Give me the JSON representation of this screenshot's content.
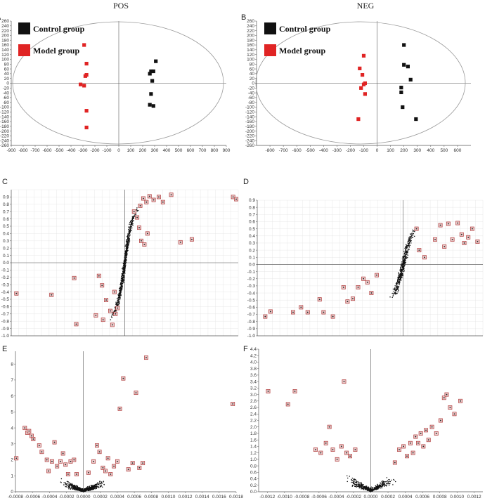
{
  "figure": {
    "title_left": "POS",
    "title_right": "NEG"
  },
  "colors": {
    "control": "#111111",
    "model": "#e02424",
    "ellipse": "#999999",
    "axis": "#555555",
    "grid": "#e2e2e2",
    "marker_outline": "#b03a3a",
    "marker_fill": "#e8c8c8"
  },
  "chart_data": [
    {
      "panel": "A",
      "type": "scatter",
      "title": "POS",
      "xlim": [
        -900,
        900
      ],
      "ylim": [
        -260,
        260
      ],
      "x_ticks": [
        -900,
        -800,
        -700,
        -600,
        -500,
        -400,
        -300,
        -200,
        -100,
        0,
        100,
        200,
        300,
        400,
        500,
        600,
        700,
        800,
        900
      ],
      "y_ticks": [
        260,
        240,
        220,
        200,
        180,
        160,
        140,
        120,
        100,
        80,
        60,
        40,
        20,
        0,
        -20,
        -40,
        -60,
        -80,
        -100,
        -120,
        -140,
        -160,
        -180,
        -200,
        -220,
        -240,
        -260
      ],
      "legend": [
        "Control group",
        "Model group"
      ],
      "series": [
        {
          "name": "Control group",
          "points": [
            [
              310,
              92
            ],
            [
              270,
              50
            ],
            [
              290,
              50
            ],
            [
              260,
              40
            ],
            [
              280,
              10
            ],
            [
              270,
              -45
            ],
            [
              260,
              -90
            ],
            [
              290,
              -95
            ]
          ]
        },
        {
          "name": "Model group",
          "points": [
            [
              -290,
              160
            ],
            [
              -270,
              82
            ],
            [
              -270,
              35
            ],
            [
              -280,
              30
            ],
            [
              -320,
              -5
            ],
            [
              -290,
              -10
            ],
            [
              -270,
              -115
            ],
            [
              -270,
              -185
            ]
          ]
        }
      ]
    },
    {
      "panel": "B",
      "type": "scatter",
      "title": "NEG",
      "xlim": [
        -900,
        700
      ],
      "ylim": [
        -260,
        260
      ],
      "x_ticks": [
        -800,
        -700,
        -600,
        -500,
        -400,
        -300,
        -200,
        -100,
        0,
        100,
        200,
        300,
        400,
        500,
        600
      ],
      "y_ticks": [
        260,
        240,
        220,
        200,
        180,
        160,
        140,
        120,
        100,
        80,
        60,
        40,
        20,
        0,
        -20,
        -40,
        -60,
        -80,
        -100,
        -120,
        -140,
        -160,
        -180,
        -200,
        -220,
        -240,
        -260
      ],
      "legend": [
        "Control group",
        "Model group"
      ],
      "series": [
        {
          "name": "Control group",
          "points": [
            [
              200,
              160
            ],
            [
              200,
              77
            ],
            [
              230,
              70
            ],
            [
              250,
              15
            ],
            [
              180,
              -18
            ],
            [
              180,
              -38
            ],
            [
              190,
              -100
            ],
            [
              290,
              -150
            ]
          ]
        },
        {
          "name": "Model group",
          "points": [
            [
              -100,
              115
            ],
            [
              -130,
              62
            ],
            [
              -110,
              35
            ],
            [
              -90,
              0
            ],
            [
              -100,
              -5
            ],
            [
              -120,
              -20
            ],
            [
              -90,
              -45
            ],
            [
              -140,
              -150
            ]
          ]
        }
      ]
    },
    {
      "panel": "C",
      "type": "scatter",
      "xlim": [
        -0.0011,
        0.0011
      ],
      "ylim": [
        -1.0,
        1.0
      ],
      "y_ticks": [
        0.9,
        0.8,
        0.7,
        0.6,
        0.5,
        0.4,
        0.3,
        0.2,
        0.1,
        0.0,
        -0.1,
        -0.2,
        -0.3,
        -0.4,
        -0.5,
        -0.6,
        -0.7,
        -0.8,
        -0.9,
        -1.0
      ],
      "highlighted": [
        [
          -0.00105,
          -0.42
        ],
        [
          -0.00071,
          -0.44
        ],
        [
          -0.00049,
          -0.21
        ],
        [
          -0.00047,
          -0.84
        ],
        [
          -0.00025,
          -0.18
        ],
        [
          -0.00022,
          -0.31
        ],
        [
          -0.00018,
          -0.51
        ],
        [
          -0.00028,
          -0.72
        ],
        [
          -0.00021,
          -0.78
        ],
        [
          -0.00014,
          -0.66
        ],
        [
          -0.00012,
          -0.85
        ],
        [
          -9e-05,
          -0.7
        ],
        [
          -7e-05,
          -0.62
        ],
        [
          -0.0001,
          -0.4
        ],
        [
          9e-05,
          0.7
        ],
        [
          0.00012,
          0.62
        ],
        [
          0.00015,
          0.78
        ],
        [
          0.00018,
          0.88
        ],
        [
          0.00021,
          0.83
        ],
        [
          0.00024,
          0.91
        ],
        [
          0.00028,
          0.86
        ],
        [
          0.00033,
          0.9
        ],
        [
          0.00037,
          0.83
        ],
        [
          0.00045,
          0.93
        ],
        [
          0.00054,
          0.28
        ],
        [
          0.00065,
          0.32
        ],
        [
          0.00014,
          0.48
        ],
        [
          0.00016,
          0.3
        ],
        [
          0.00019,
          0.25
        ],
        [
          0.00022,
          0.4
        ],
        [
          0.00105,
          0.9
        ],
        [
          0.00108,
          0.87
        ]
      ]
    },
    {
      "panel": "D",
      "type": "scatter",
      "xlim": [
        -0.0011,
        0.0006
      ],
      "ylim": [
        -1.0,
        0.9
      ],
      "y_ticks": [
        0.9,
        0.8,
        0.7,
        0.6,
        0.5,
        0.4,
        0.3,
        0.2,
        0.1,
        0.0,
        -0.1,
        -0.2,
        -0.3,
        -0.4,
        -0.5,
        -0.6,
        -0.7,
        -0.8,
        -0.9,
        -1.0
      ],
      "highlighted": [
        [
          -0.00104,
          -0.73
        ],
        [
          -0.001,
          -0.66
        ],
        [
          -0.00083,
          -0.67
        ],
        [
          -0.00077,
          -0.6
        ],
        [
          -0.00072,
          -0.67
        ],
        [
          -0.00063,
          -0.49
        ],
        [
          -0.0006,
          -0.67
        ],
        [
          -0.00053,
          -0.73
        ],
        [
          -0.00045,
          -0.32
        ],
        [
          -0.00042,
          -0.52
        ],
        [
          -0.00038,
          -0.48
        ],
        [
          -0.00034,
          -0.32
        ],
        [
          -0.0003,
          -0.2
        ],
        [
          -0.00027,
          -0.25
        ],
        [
          -0.00024,
          -0.4
        ],
        [
          -0.0002,
          -0.15
        ],
        [
          0.0001,
          0.5
        ],
        [
          0.00012,
          0.2
        ],
        [
          0.00016,
          0.1
        ],
        [
          0.00024,
          0.35
        ],
        [
          0.00028,
          0.55
        ],
        [
          0.00031,
          0.25
        ],
        [
          0.00034,
          0.57
        ],
        [
          0.00037,
          0.35
        ],
        [
          0.00041,
          0.58
        ],
        [
          0.00044,
          0.42
        ],
        [
          0.00046,
          0.3
        ],
        [
          0.00049,
          0.38
        ],
        [
          0.00052,
          0.5
        ],
        [
          0.00056,
          0.32
        ]
      ]
    },
    {
      "panel": "E",
      "type": "scatter",
      "xlim": [
        -0.0008,
        0.0018
      ],
      "ylim": [
        0,
        8.8
      ],
      "x_ticks": [
        -0.0008,
        -0.0006,
        -0.0004,
        -0.0002,
        0.0,
        0.0002,
        0.0004,
        0.0006,
        0.0008,
        0.001,
        0.0012,
        0.0014,
        0.0016,
        0.0018
      ],
      "y_ticks": [
        0,
        1,
        2,
        3,
        4,
        5,
        6,
        7,
        8
      ],
      "highlighted": [
        [
          -0.00079,
          2.1
        ],
        [
          -0.00069,
          4.0
        ],
        [
          -0.00066,
          3.7
        ],
        [
          -0.00064,
          3.8
        ],
        [
          -0.00061,
          3.5
        ],
        [
          -0.00059,
          3.3
        ],
        [
          -0.00052,
          2.9
        ],
        [
          -0.00049,
          2.5
        ],
        [
          -0.00043,
          2.0
        ],
        [
          -0.00041,
          1.3
        ],
        [
          -0.00037,
          1.9
        ],
        [
          -0.00034,
          3.1
        ],
        [
          -0.00031,
          1.6
        ],
        [
          -0.00027,
          1.9
        ],
        [
          -0.00024,
          2.4
        ],
        [
          -0.00021,
          1.7
        ],
        [
          -0.00018,
          1.1
        ],
        [
          -0.00015,
          1.9
        ],
        [
          -0.00011,
          2.0
        ],
        [
          -8e-05,
          1.1
        ],
        [
          6e-05,
          1.2
        ],
        [
          0.00012,
          1.9
        ],
        [
          0.00016,
          2.9
        ],
        [
          0.00019,
          2.5
        ],
        [
          0.00023,
          1.5
        ],
        [
          0.00026,
          1.3
        ],
        [
          0.00029,
          2.1
        ],
        [
          0.00032,
          1.1
        ],
        [
          0.00036,
          1.6
        ],
        [
          0.0004,
          1.9
        ],
        [
          0.00043,
          5.2
        ],
        [
          0.00047,
          7.1
        ],
        [
          0.00053,
          1.4
        ],
        [
          0.00058,
          1.8
        ],
        [
          0.00062,
          6.2
        ],
        [
          0.00066,
          1.5
        ],
        [
          0.0007,
          1.8
        ],
        [
          0.00074,
          8.4
        ],
        [
          0.00176,
          5.5
        ]
      ]
    },
    {
      "panel": "F",
      "type": "scatter",
      "xlim": [
        -0.0013,
        0.0013
      ],
      "ylim": [
        0,
        4.4
      ],
      "x_ticks": [
        -0.0012,
        -0.001,
        -0.0008,
        -0.0006,
        -0.0004,
        -0.0002,
        0.0,
        0.0002,
        0.0004,
        0.0006,
        0.0008,
        0.001,
        0.0012
      ],
      "y_ticks": [
        0,
        0.2,
        0.4,
        0.6,
        0.8,
        1.0,
        1.2,
        1.4,
        1.6,
        1.8,
        2.0,
        2.2,
        2.4,
        2.6,
        2.8,
        3.0,
        3.2,
        3.4,
        3.6,
        3.8,
        4.0,
        4.2,
        4.4
      ],
      "highlighted": [
        [
          -0.00119,
          3.1
        ],
        [
          -0.00096,
          2.7
        ],
        [
          -0.00088,
          3.1
        ],
        [
          -0.00064,
          1.3
        ],
        [
          -0.00058,
          1.2
        ],
        [
          -0.00052,
          1.5
        ],
        [
          -0.00048,
          2.0
        ],
        [
          -0.00044,
          1.3
        ],
        [
          -0.00039,
          1.0
        ],
        [
          -0.00034,
          1.4
        ],
        [
          -0.00031,
          3.4
        ],
        [
          -0.00028,
          1.2
        ],
        [
          -0.00024,
          1.1
        ],
        [
          -0.00018,
          1.3
        ],
        [
          0.00028,
          0.9
        ],
        [
          0.00033,
          1.3
        ],
        [
          0.00038,
          1.4
        ],
        [
          0.00042,
          1.1
        ],
        [
          0.00046,
          1.5
        ],
        [
          0.00049,
          1.2
        ],
        [
          0.00052,
          1.7
        ],
        [
          0.00055,
          1.5
        ],
        [
          0.00058,
          1.8
        ],
        [
          0.00061,
          1.4
        ],
        [
          0.00064,
          1.9
        ],
        [
          0.00067,
          1.6
        ],
        [
          0.00071,
          2.0
        ],
        [
          0.00076,
          1.8
        ],
        [
          0.00081,
          2.2
        ],
        [
          0.00085,
          2.9
        ],
        [
          0.00088,
          3.0
        ],
        [
          0.00092,
          2.6
        ],
        [
          0.00097,
          2.4
        ],
        [
          0.00104,
          2.8
        ]
      ]
    }
  ]
}
